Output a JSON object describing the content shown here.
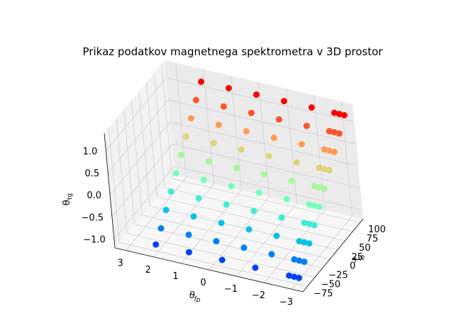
{
  "chart_data": {
    "type": "scatter",
    "title": "Prikaz podatkov magnetnega spektrometra v 3D prostor",
    "xlabel": "x",
    "xlabel_sub": "fp",
    "ylabel": "θ",
    "ylabel_sub": "fp",
    "zlabel": "θ",
    "zlabel_sub": "tg",
    "colormap": "rainbow",
    "grid": true,
    "x_ticks": [
      "100",
      "75",
      "50",
      "25",
      "0",
      "−25",
      "−50",
      "−75"
    ],
    "y_ticks": [
      "3",
      "2",
      "1",
      "0",
      "−1",
      "−2",
      "−3"
    ],
    "z_ticks": [
      "1.0",
      "0.5",
      "0.0",
      "−0.5",
      "−1.0"
    ],
    "xlim": [
      -90,
      110
    ],
    "ylim": [
      -3.4,
      3.4
    ],
    "zlim": [
      -1.2,
      1.4
    ],
    "x_rows": [
      -80,
      -60,
      -40,
      -20,
      0,
      20,
      40,
      60,
      80,
      100
    ],
    "point_groups": [
      {
        "x": -80,
        "y": [
          -3,
          -1.6,
          -0.4,
          0.8,
          2.0
        ],
        "z": -1.0
      },
      {
        "x": -60,
        "y": [
          -3,
          -2,
          -1,
          0,
          1,
          2
        ],
        "z": -0.8
      },
      {
        "x": -40,
        "y": [
          -3,
          -2,
          -1,
          0,
          1,
          2
        ],
        "z": -0.55
      },
      {
        "x": -20,
        "y": [
          -3,
          -2,
          -1,
          0,
          1,
          2
        ],
        "z": -0.3
      },
      {
        "x": 0,
        "y": [
          -3,
          -2,
          -1,
          0,
          1,
          2
        ],
        "z": -0.05
      },
      {
        "x": 20,
        "y": [
          -3,
          -2,
          -1,
          0,
          1,
          2
        ],
        "z": 0.2
      },
      {
        "x": 40,
        "y": [
          -3,
          -2,
          -1,
          0,
          1,
          2
        ],
        "z": 0.45
      },
      {
        "x": 60,
        "y": [
          -3,
          -2,
          -1,
          0,
          1,
          2
        ],
        "z": 0.7
      },
      {
        "x": 80,
        "y": [
          -3,
          -2,
          -1,
          0,
          1,
          2
        ],
        "z": 0.95
      },
      {
        "x": 100,
        "y": [
          -3,
          -2,
          -1,
          0,
          1,
          2
        ],
        "z": 1.2
      }
    ]
  }
}
